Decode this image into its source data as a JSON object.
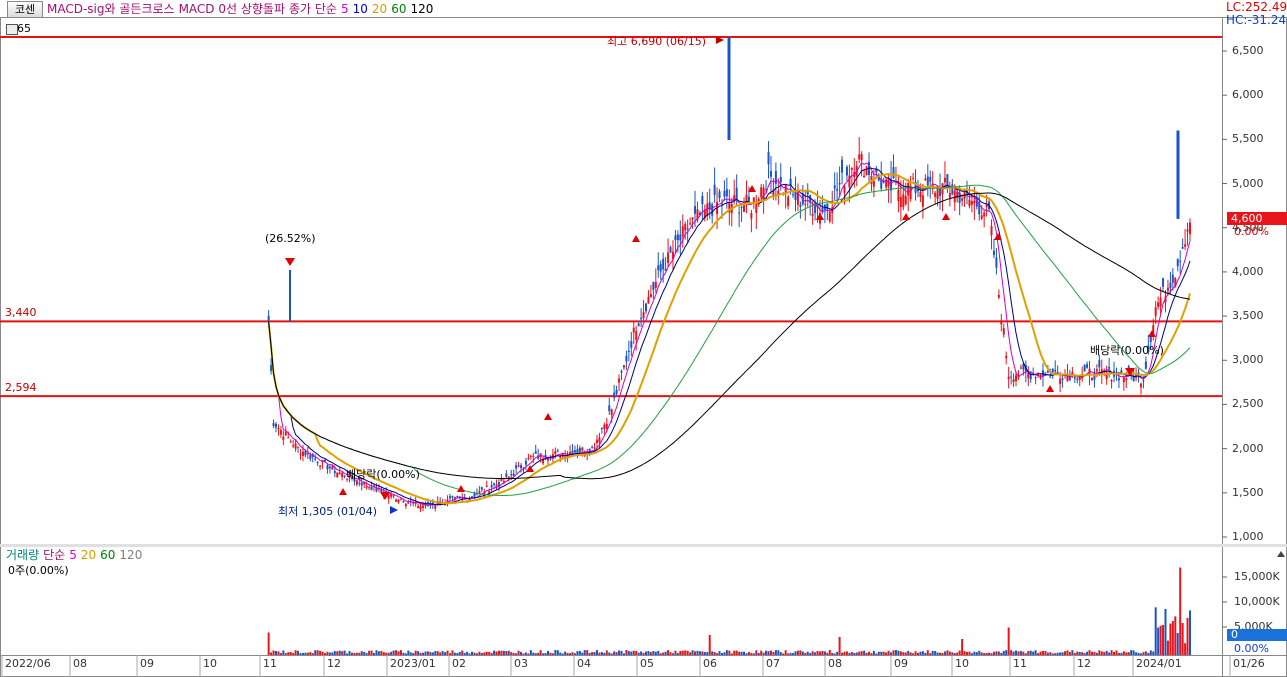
{
  "toolbar": {
    "tab_label": "코센",
    "small_code": "65"
  },
  "legend_main": [
    {
      "label": "MACD-sig와 골든크로스",
      "color": "#a01070"
    },
    {
      "label": "MACD 0선 상향돌파",
      "color": "#a01070"
    },
    {
      "label": "종가 단순",
      "color": "#a01070"
    },
    {
      "label": "5",
      "color": "#d000d0"
    },
    {
      "label": "10",
      "color": "#0000c0"
    },
    {
      "label": "20",
      "color": "#d0a000"
    },
    {
      "label": "60",
      "color": "#008000"
    },
    {
      "label": "120",
      "color": "#000000"
    }
  ],
  "legend_volume": [
    {
      "label": "거래량",
      "color": "#008080"
    },
    {
      "label": "단순",
      "color": "#a01070"
    },
    {
      "label": "5",
      "color": "#d000d0"
    },
    {
      "label": "20",
      "color": "#d0a000"
    },
    {
      "label": "60",
      "color": "#008000"
    },
    {
      "label": "120",
      "color": "#808080"
    }
  ],
  "readout": {
    "lc": "LC:252.49",
    "hc": "HC:-31.24"
  },
  "price_axis": {
    "ticks": [
      "6,500",
      "6,000",
      "5,500",
      "5,000",
      "4,500",
      "4,000",
      "3,500",
      "3,000",
      "2,500",
      "2,000",
      "1,500",
      "1,000"
    ],
    "current_price": "4,600",
    "current_change": "0.00%"
  },
  "volume_axis": {
    "ticks": [
      "15,000K",
      "10,000K",
      "5,000K"
    ],
    "current_volume": "0",
    "current_change": "0.00%",
    "info": "0주(0.00%)"
  },
  "date_axis": [
    "2022/06",
    "08",
    "09",
    "10",
    "11",
    "12",
    "2023/01",
    "02",
    "03",
    "04",
    "05",
    "06",
    "07",
    "08",
    "09",
    "10",
    "11",
    "12",
    "2024/01",
    "01/26"
  ],
  "horizontal_lines": [
    {
      "label": "",
      "value": 6690
    },
    {
      "label": "3,440",
      "value": 3440
    },
    {
      "label": "2,594",
      "value": 2594
    }
  ],
  "annotations": {
    "high": "최고 6,690 (06/15)",
    "low": "최저 1,305 (01/04)",
    "spike_pct": "(26.52%)",
    "dividend1": "배당락(0.00%)",
    "dividend2": "배당락(0.00%)"
  },
  "colors": {
    "up": "#e8141a",
    "down": "#1a55c8",
    "hline": "#e81010",
    "ma5": "#d000d0",
    "ma10": "#000080",
    "ma20": "#e0a000",
    "ma60": "#20a040",
    "ma120": "#000000",
    "accent": "#1a72d8"
  }
}
